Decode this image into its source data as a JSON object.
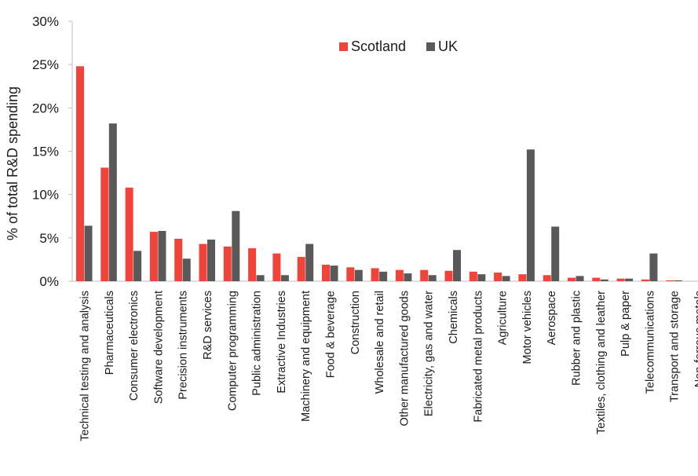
{
  "chart_data": {
    "type": "bar",
    "title": "",
    "xlabel": "",
    "ylabel": "% of total R&D spending",
    "ylim": [
      0,
      30
    ],
    "yticks": [
      "0%",
      "5%",
      "10%",
      "15%",
      "20%",
      "25%",
      "30%"
    ],
    "ytick_values": [
      0,
      5,
      10,
      15,
      20,
      25,
      30
    ],
    "grid": false,
    "legend_position": "top-center",
    "categories": [
      "Technical testing and analysis",
      "Pharmaceuticals",
      "Consumer electronics",
      "Software development",
      "Precision instruments",
      "R&D services",
      "Computer programming",
      "Public administration",
      "Extractive Industries",
      "Machinery and equipment",
      "Food & beverage",
      "Construction",
      "Wholesale and retail",
      "Other manufactured goods",
      "Electricity, gas and water",
      "Chemicals",
      "Fabricated metal products",
      "Agriculture",
      "Motor vehicles",
      "Aerospace",
      "Rubber and plastic",
      "Textiles, clothing and leather",
      "Pulp & paper",
      "Telecommunications",
      "Transport and storage",
      "Non-ferrous metals"
    ],
    "series": [
      {
        "name": "Scotland",
        "color": "#f0433a",
        "values": [
          24.8,
          13.1,
          10.8,
          5.7,
          4.9,
          4.3,
          4.0,
          3.8,
          3.2,
          2.8,
          1.9,
          1.6,
          1.5,
          1.3,
          1.3,
          1.2,
          1.1,
          1.0,
          0.8,
          0.7,
          0.4,
          0.4,
          0.3,
          0.2,
          0.1,
          0.0
        ]
      },
      {
        "name": "UK",
        "color": "#595959",
        "values": [
          6.4,
          18.2,
          3.5,
          5.8,
          2.6,
          4.8,
          8.1,
          0.7,
          0.7,
          4.3,
          1.8,
          1.3,
          1.1,
          0.9,
          0.7,
          3.6,
          0.8,
          0.6,
          15.2,
          6.3,
          0.6,
          0.2,
          0.3,
          3.2,
          0.1,
          0.3
        ]
      }
    ]
  }
}
